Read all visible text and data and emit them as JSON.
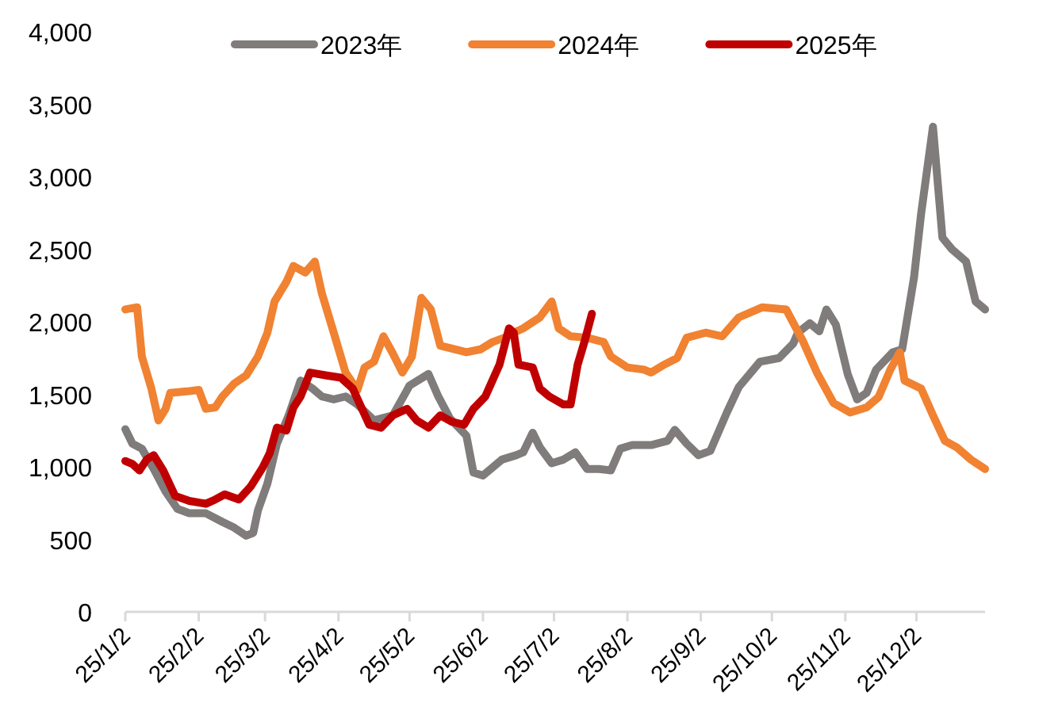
{
  "chart_data": {
    "type": "line",
    "legend": "top",
    "xlim": [
      "2025-01-02",
      "2025-12-31"
    ],
    "xticks": [
      {
        "value": "2025-01-02",
        "label": "25/1/2"
      },
      {
        "value": "2025-02-02",
        "label": "25/2/2"
      },
      {
        "value": "2025-03-02",
        "label": "25/3/2"
      },
      {
        "value": "2025-04-02",
        "label": "25/4/2"
      },
      {
        "value": "2025-05-02",
        "label": "25/5/2"
      },
      {
        "value": "2025-06-02",
        "label": "25/6/2"
      },
      {
        "value": "2025-07-02",
        "label": "25/7/2"
      },
      {
        "value": "2025-08-02",
        "label": "25/8/2"
      },
      {
        "value": "2025-09-02",
        "label": "25/9/2"
      },
      {
        "value": "2025-10-02",
        "label": "25/10/2"
      },
      {
        "value": "2025-11-02",
        "label": "25/11/2"
      },
      {
        "value": "2025-12-02",
        "label": "25/12/2"
      }
    ],
    "ylim": [
      0,
      4000
    ],
    "yticks": [
      0,
      500,
      {
        "value": 1000,
        "label": "1,000"
      },
      {
        "value": 1500,
        "label": "1,500"
      },
      {
        "value": 2000,
        "label": "2,000"
      },
      {
        "value": 2500,
        "label": "2,500"
      },
      {
        "value": 3000,
        "label": "3,000"
      },
      {
        "value": 3500,
        "label": "3,500"
      },
      {
        "value": 4000,
        "label": "4,000"
      }
    ],
    "series": [
      {
        "name": "2023年",
        "color": "#7f7c7b",
        "x": [
          "2025-01-02",
          "2025-01-05",
          "2025-01-09",
          "2025-01-14",
          "2025-01-19",
          "2025-01-24",
          "2025-01-29",
          "2025-02-05",
          "2025-02-12",
          "2025-02-17",
          "2025-02-22",
          "2025-02-25",
          "2025-02-27",
          "2025-03-03",
          "2025-03-07",
          "2025-03-12",
          "2025-03-17",
          "2025-03-22",
          "2025-03-26",
          "2025-03-31",
          "2025-04-05",
          "2025-04-10",
          "2025-04-17",
          "2025-04-25",
          "2025-05-02",
          "2025-05-10",
          "2025-05-14",
          "2025-05-19",
          "2025-05-26",
          "2025-05-29",
          "2025-06-02",
          "2025-06-10",
          "2025-06-16",
          "2025-06-19",
          "2025-06-23",
          "2025-06-26",
          "2025-07-01",
          "2025-07-06",
          "2025-07-11",
          "2025-07-16",
          "2025-07-21",
          "2025-07-26",
          "2025-07-30",
          "2025-08-04",
          "2025-08-12",
          "2025-08-19",
          "2025-08-22",
          "2025-08-27",
          "2025-09-01",
          "2025-09-06",
          "2025-09-13",
          "2025-09-18",
          "2025-09-27",
          "2025-10-05",
          "2025-10-11",
          "2025-10-13",
          "2025-10-18",
          "2025-10-22",
          "2025-10-25",
          "2025-10-29",
          "2025-11-03",
          "2025-11-07",
          "2025-11-11",
          "2025-11-15",
          "2025-11-22",
          "2025-11-26",
          "2025-12-01",
          "2025-12-04",
          "2025-12-09",
          "2025-12-13",
          "2025-12-17",
          "2025-12-23",
          "2025-12-27",
          "2025-12-31"
        ],
        "values": [
          1260,
          1160,
          1125,
          985,
          830,
          710,
          680,
          680,
          620,
          580,
          525,
          545,
          700,
          885,
          1160,
          1355,
          1595,
          1540,
          1485,
          1465,
          1485,
          1430,
          1320,
          1355,
          1560,
          1640,
          1490,
          1335,
          1215,
          960,
          940,
          1050,
          1080,
          1100,
          1235,
          1135,
          1025,
          1050,
          1100,
          985,
          985,
          975,
          1125,
          1150,
          1150,
          1180,
          1255,
          1160,
          1080,
          1110,
          1375,
          1550,
          1725,
          1750,
          1850,
          1925,
          1990,
          1935,
          2085,
          1980,
          1640,
          1465,
          1510,
          1670,
          1790,
          1810,
          2305,
          2745,
          3345,
          2580,
          2500,
          2415,
          2140,
          2085
        ]
      },
      {
        "name": "2024年",
        "color": "#f08232",
        "x": [
          "2025-01-02",
          "2025-01-07",
          "2025-01-09",
          "2025-01-13",
          "2025-01-16",
          "2025-01-19",
          "2025-01-21",
          "2025-01-28",
          "2025-02-02",
          "2025-02-05",
          "2025-02-09",
          "2025-02-12",
          "2025-02-17",
          "2025-02-22",
          "2025-02-27",
          "2025-03-03",
          "2025-03-06",
          "2025-03-11",
          "2025-03-14",
          "2025-03-19",
          "2025-03-23",
          "2025-03-26",
          "2025-03-31",
          "2025-04-05",
          "2025-04-10",
          "2025-04-13",
          "2025-04-17",
          "2025-04-21",
          "2025-04-25",
          "2025-04-29",
          "2025-05-03",
          "2025-05-07",
          "2025-05-11",
          "2025-05-15",
          "2025-05-20",
          "2025-05-26",
          "2025-06-01",
          "2025-06-06",
          "2025-06-11",
          "2025-06-15",
          "2025-06-19",
          "2025-06-26",
          "2025-07-01",
          "2025-07-04",
          "2025-07-09",
          "2025-07-16",
          "2025-07-23",
          "2025-07-26",
          "2025-08-02",
          "2025-08-09",
          "2025-08-12",
          "2025-08-17",
          "2025-08-23",
          "2025-08-27",
          "2025-09-04",
          "2025-09-11",
          "2025-09-18",
          "2025-09-28",
          "2025-10-08",
          "2025-10-15",
          "2025-10-21",
          "2025-10-28",
          "2025-11-04",
          "2025-11-11",
          "2025-11-16",
          "2025-11-21",
          "2025-11-25",
          "2025-11-27",
          "2025-12-04",
          "2025-12-09",
          "2025-12-14",
          "2025-12-19",
          "2025-12-25",
          "2025-12-31"
        ],
        "values": [
          2085,
          2100,
          1760,
          1540,
          1320,
          1400,
          1510,
          1520,
          1530,
          1400,
          1410,
          1485,
          1575,
          1630,
          1760,
          1925,
          2140,
          2275,
          2385,
          2340,
          2415,
          2195,
          1925,
          1650,
          1530,
          1685,
          1725,
          1900,
          1780,
          1650,
          1760,
          2165,
          2085,
          1835,
          1815,
          1790,
          1810,
          1860,
          1890,
          1925,
          1955,
          2030,
          2140,
          1955,
          1900,
          1890,
          1860,
          1760,
          1685,
          1670,
          1650,
          1700,
          1750,
          1890,
          1925,
          1900,
          2030,
          2100,
          2085,
          1870,
          1650,
          1440,
          1375,
          1410,
          1480,
          1670,
          1790,
          1595,
          1540,
          1355,
          1180,
          1135,
          1050,
          985
        ]
      },
      {
        "name": "2025年",
        "color": "#c00000",
        "x": [
          "2025-01-02",
          "2025-01-05",
          "2025-01-08",
          "2025-01-11",
          "2025-01-14",
          "2025-01-18",
          "2025-01-23",
          "2025-01-29",
          "2025-02-05",
          "2025-02-09",
          "2025-02-13",
          "2025-02-19",
          "2025-02-24",
          "2025-03-01",
          "2025-03-04",
          "2025-03-07",
          "2025-03-11",
          "2025-03-14",
          "2025-03-17",
          "2025-03-21",
          "2025-03-28",
          "2025-04-03",
          "2025-04-08",
          "2025-04-15",
          "2025-04-20",
          "2025-04-25",
          "2025-05-01",
          "2025-05-05",
          "2025-05-10",
          "2025-05-15",
          "2025-05-20",
          "2025-05-25",
          "2025-05-29",
          "2025-06-03",
          "2025-06-06",
          "2025-06-09",
          "2025-06-13",
          "2025-06-15",
          "2025-06-17",
          "2025-06-23",
          "2025-06-26",
          "2025-06-30",
          "2025-07-06",
          "2025-07-09",
          "2025-07-12",
          "2025-07-15",
          "2025-07-18"
        ],
        "values": [
          1040,
          1020,
          975,
          1050,
          1080,
          975,
          800,
          765,
          745,
          775,
          810,
          775,
          865,
          995,
          1095,
          1270,
          1250,
          1410,
          1485,
          1650,
          1630,
          1615,
          1540,
          1290,
          1270,
          1355,
          1400,
          1320,
          1270,
          1355,
          1310,
          1290,
          1400,
          1485,
          1595,
          1705,
          1955,
          1925,
          1705,
          1685,
          1540,
          1485,
          1430,
          1430,
          1705,
          1870,
          2055
        ]
      }
    ]
  }
}
